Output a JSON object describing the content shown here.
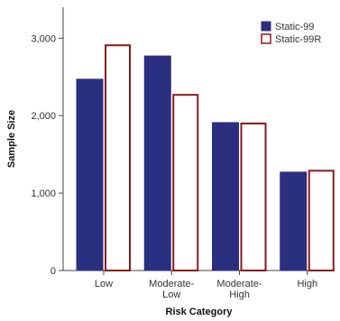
{
  "chart_data": {
    "type": "bar",
    "title": "",
    "xlabel": "Risk Category",
    "ylabel": "Sample Size",
    "categories": [
      [
        "Low"
      ],
      [
        "Moderate-",
        "Low"
      ],
      [
        "Moderate-",
        "High"
      ],
      [
        "High"
      ]
    ],
    "series": [
      {
        "name": "Static-99",
        "values": [
          2470,
          2770,
          1910,
          1270
        ],
        "fill": "#2b2f7f",
        "stroke": "#2b2f7f"
      },
      {
        "name": "Static-99R",
        "values": [
          2920,
          2280,
          1910,
          1300
        ],
        "fill": "#ffffff",
        "stroke": "#8b1a1a"
      }
    ],
    "ylim": [
      0,
      3400
    ],
    "yticks": [
      0,
      1000,
      2000,
      3000
    ],
    "ytick_labels": [
      "0",
      "1,000",
      "2,000",
      "3,000"
    ],
    "grid": false,
    "legend_position": "top-right"
  }
}
